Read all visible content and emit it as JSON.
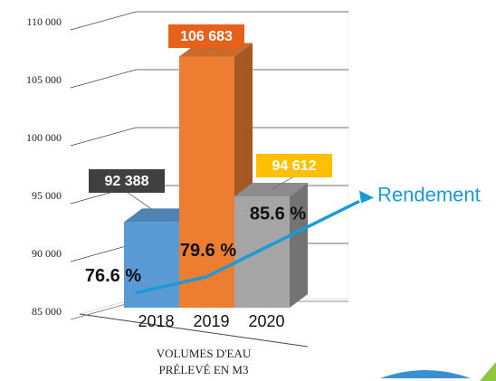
{
  "chart_data": {
    "type": "bar3d",
    "categories": [
      "2018",
      "2019",
      "2020"
    ],
    "values": [
      92388,
      106683,
      94612
    ],
    "value_labels": [
      "92 388",
      "106 683",
      "94 612"
    ],
    "colors": [
      "#5b9bd5",
      "#ed7d31",
      "#a5a5a5"
    ],
    "label_colors": [
      "#404040",
      "#e8611a",
      "#ffc000"
    ],
    "ylim": [
      85000,
      110000
    ],
    "yticks": [
      {
        "value": 85000,
        "label": "85 000"
      },
      {
        "value": 90000,
        "label": "90 000"
      },
      {
        "value": 95000,
        "label": "95 000"
      },
      {
        "value": 100000,
        "label": "100 000"
      },
      {
        "value": 105000,
        "label": "105 000"
      },
      {
        "value": 110000,
        "label": "110 000"
      }
    ],
    "grid": true,
    "x_label": [
      "VOLUMES D'EAU",
      "PRÉLEVÉ EN M3"
    ],
    "series": [
      {
        "name": "Rendement",
        "color": "#1a9ad6",
        "axis": "y2",
        "values": [
          76.6,
          79.6,
          85.6
        ],
        "value_labels": [
          "76.6 %",
          "79.6 %",
          "85.6 %"
        ]
      }
    ],
    "y2lim": [
      73,
      127
    ]
  }
}
